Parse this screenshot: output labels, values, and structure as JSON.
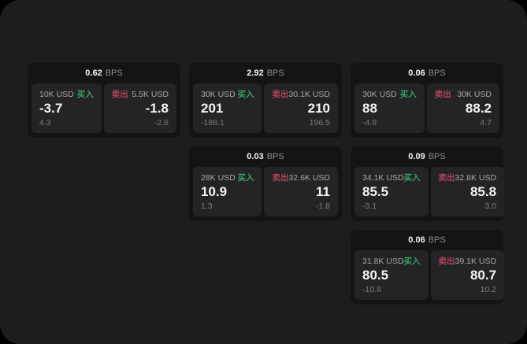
{
  "labels": {
    "bps": "BPS",
    "buy": "买入",
    "sell": "卖出"
  },
  "colors": {
    "window_bg": "#1d1d1f",
    "card_bg": "#141415",
    "panel_bg": "#242427",
    "buy_accent": "#35a266",
    "sell_accent": "#b0435a"
  },
  "cards": [
    {
      "bps": "0.62",
      "buy": {
        "size": "10K USD",
        "value": "-3.7",
        "delta": "4.3"
      },
      "sell": {
        "size": "5.5K USD",
        "value": "-1.8",
        "delta": "-2.6"
      }
    },
    {
      "bps": "2.92",
      "buy": {
        "size": "30K USD",
        "value": "201",
        "delta": "-188.1"
      },
      "sell": {
        "size": "30.1K USD",
        "value": "210",
        "delta": "196.5"
      }
    },
    {
      "bps": "0.06",
      "buy": {
        "size": "30K USD",
        "value": "88",
        "delta": "-4.9"
      },
      "sell": {
        "size": "30K USD",
        "value": "88.2",
        "delta": "4.7"
      }
    },
    {
      "bps": "0.03",
      "buy": {
        "size": "28K USD",
        "value": "10.9",
        "delta": "1.3"
      },
      "sell": {
        "size": "32.6K USD",
        "value": "11",
        "delta": "-1.8"
      }
    },
    {
      "bps": "0.09",
      "buy": {
        "size": "34.1K USD",
        "value": "85.5",
        "delta": "-3.1"
      },
      "sell": {
        "size": "32.8K USD",
        "value": "85.8",
        "delta": "3.0"
      }
    },
    {
      "bps": "0.06",
      "buy": {
        "size": "31.8K USD",
        "value": "80.5",
        "delta": "-10.8"
      },
      "sell": {
        "size": "39.1K USD",
        "value": "80.7",
        "delta": "10.2"
      }
    }
  ]
}
